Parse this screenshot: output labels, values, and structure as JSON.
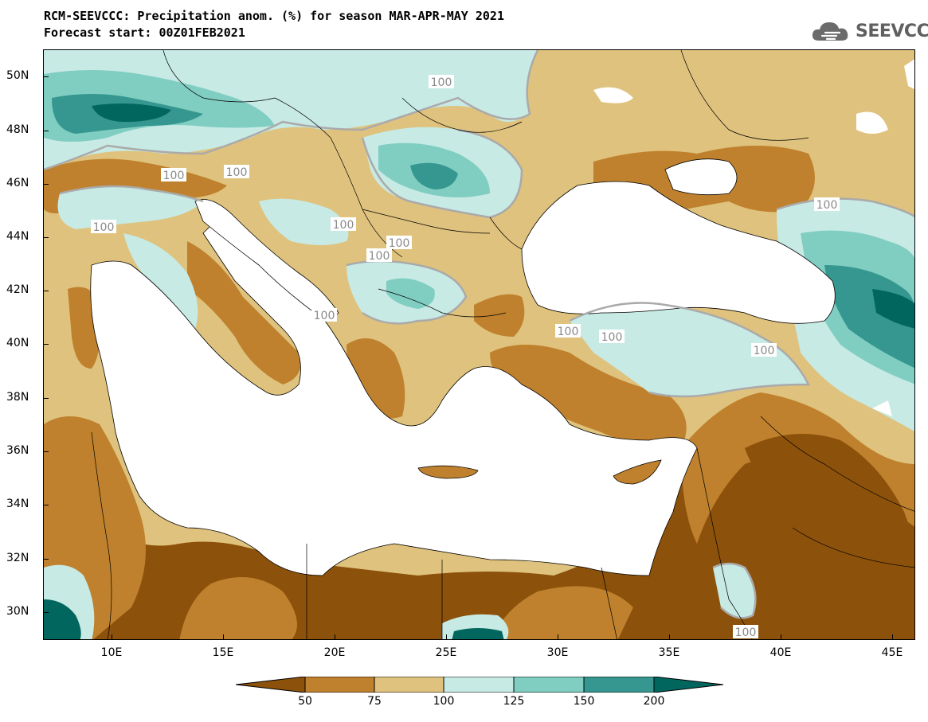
{
  "title": "RCM-SEEVCCC: Precipitation anom. (%) for season MAR-APR-MAY 2021",
  "subtitle": "Forecast start: 00Z01FEB2021",
  "logo": {
    "text": "SEEVCCC",
    "icon": "cloud-icon"
  },
  "colors": {
    "below50": "#8c510a",
    "c50_75": "#bf812d",
    "c75_100": "#dfc27d",
    "c100_125": "#c7eae5",
    "c125_150": "#80cdc1",
    "c150_200": "#35978f",
    "above200": "#01665e",
    "sea": "#ffffff",
    "contour": "#aaaaaa"
  },
  "axes": {
    "lat_labels": [
      "50N",
      "48N",
      "46N",
      "44N",
      "42N",
      "40N",
      "38N",
      "36N",
      "34N",
      "32N",
      "30N"
    ],
    "lon_labels": [
      "10E",
      "15E",
      "20E",
      "25E",
      "30E",
      "35E",
      "40E",
      "45E"
    ]
  },
  "contour_labels": [
    "100",
    "100",
    "100",
    "100",
    "100",
    "100",
    "100",
    "100",
    "100",
    "100",
    "100",
    "100",
    "100"
  ],
  "colorbar": {
    "labels": [
      "50",
      "75",
      "100",
      "125",
      "150",
      "200"
    ]
  }
}
